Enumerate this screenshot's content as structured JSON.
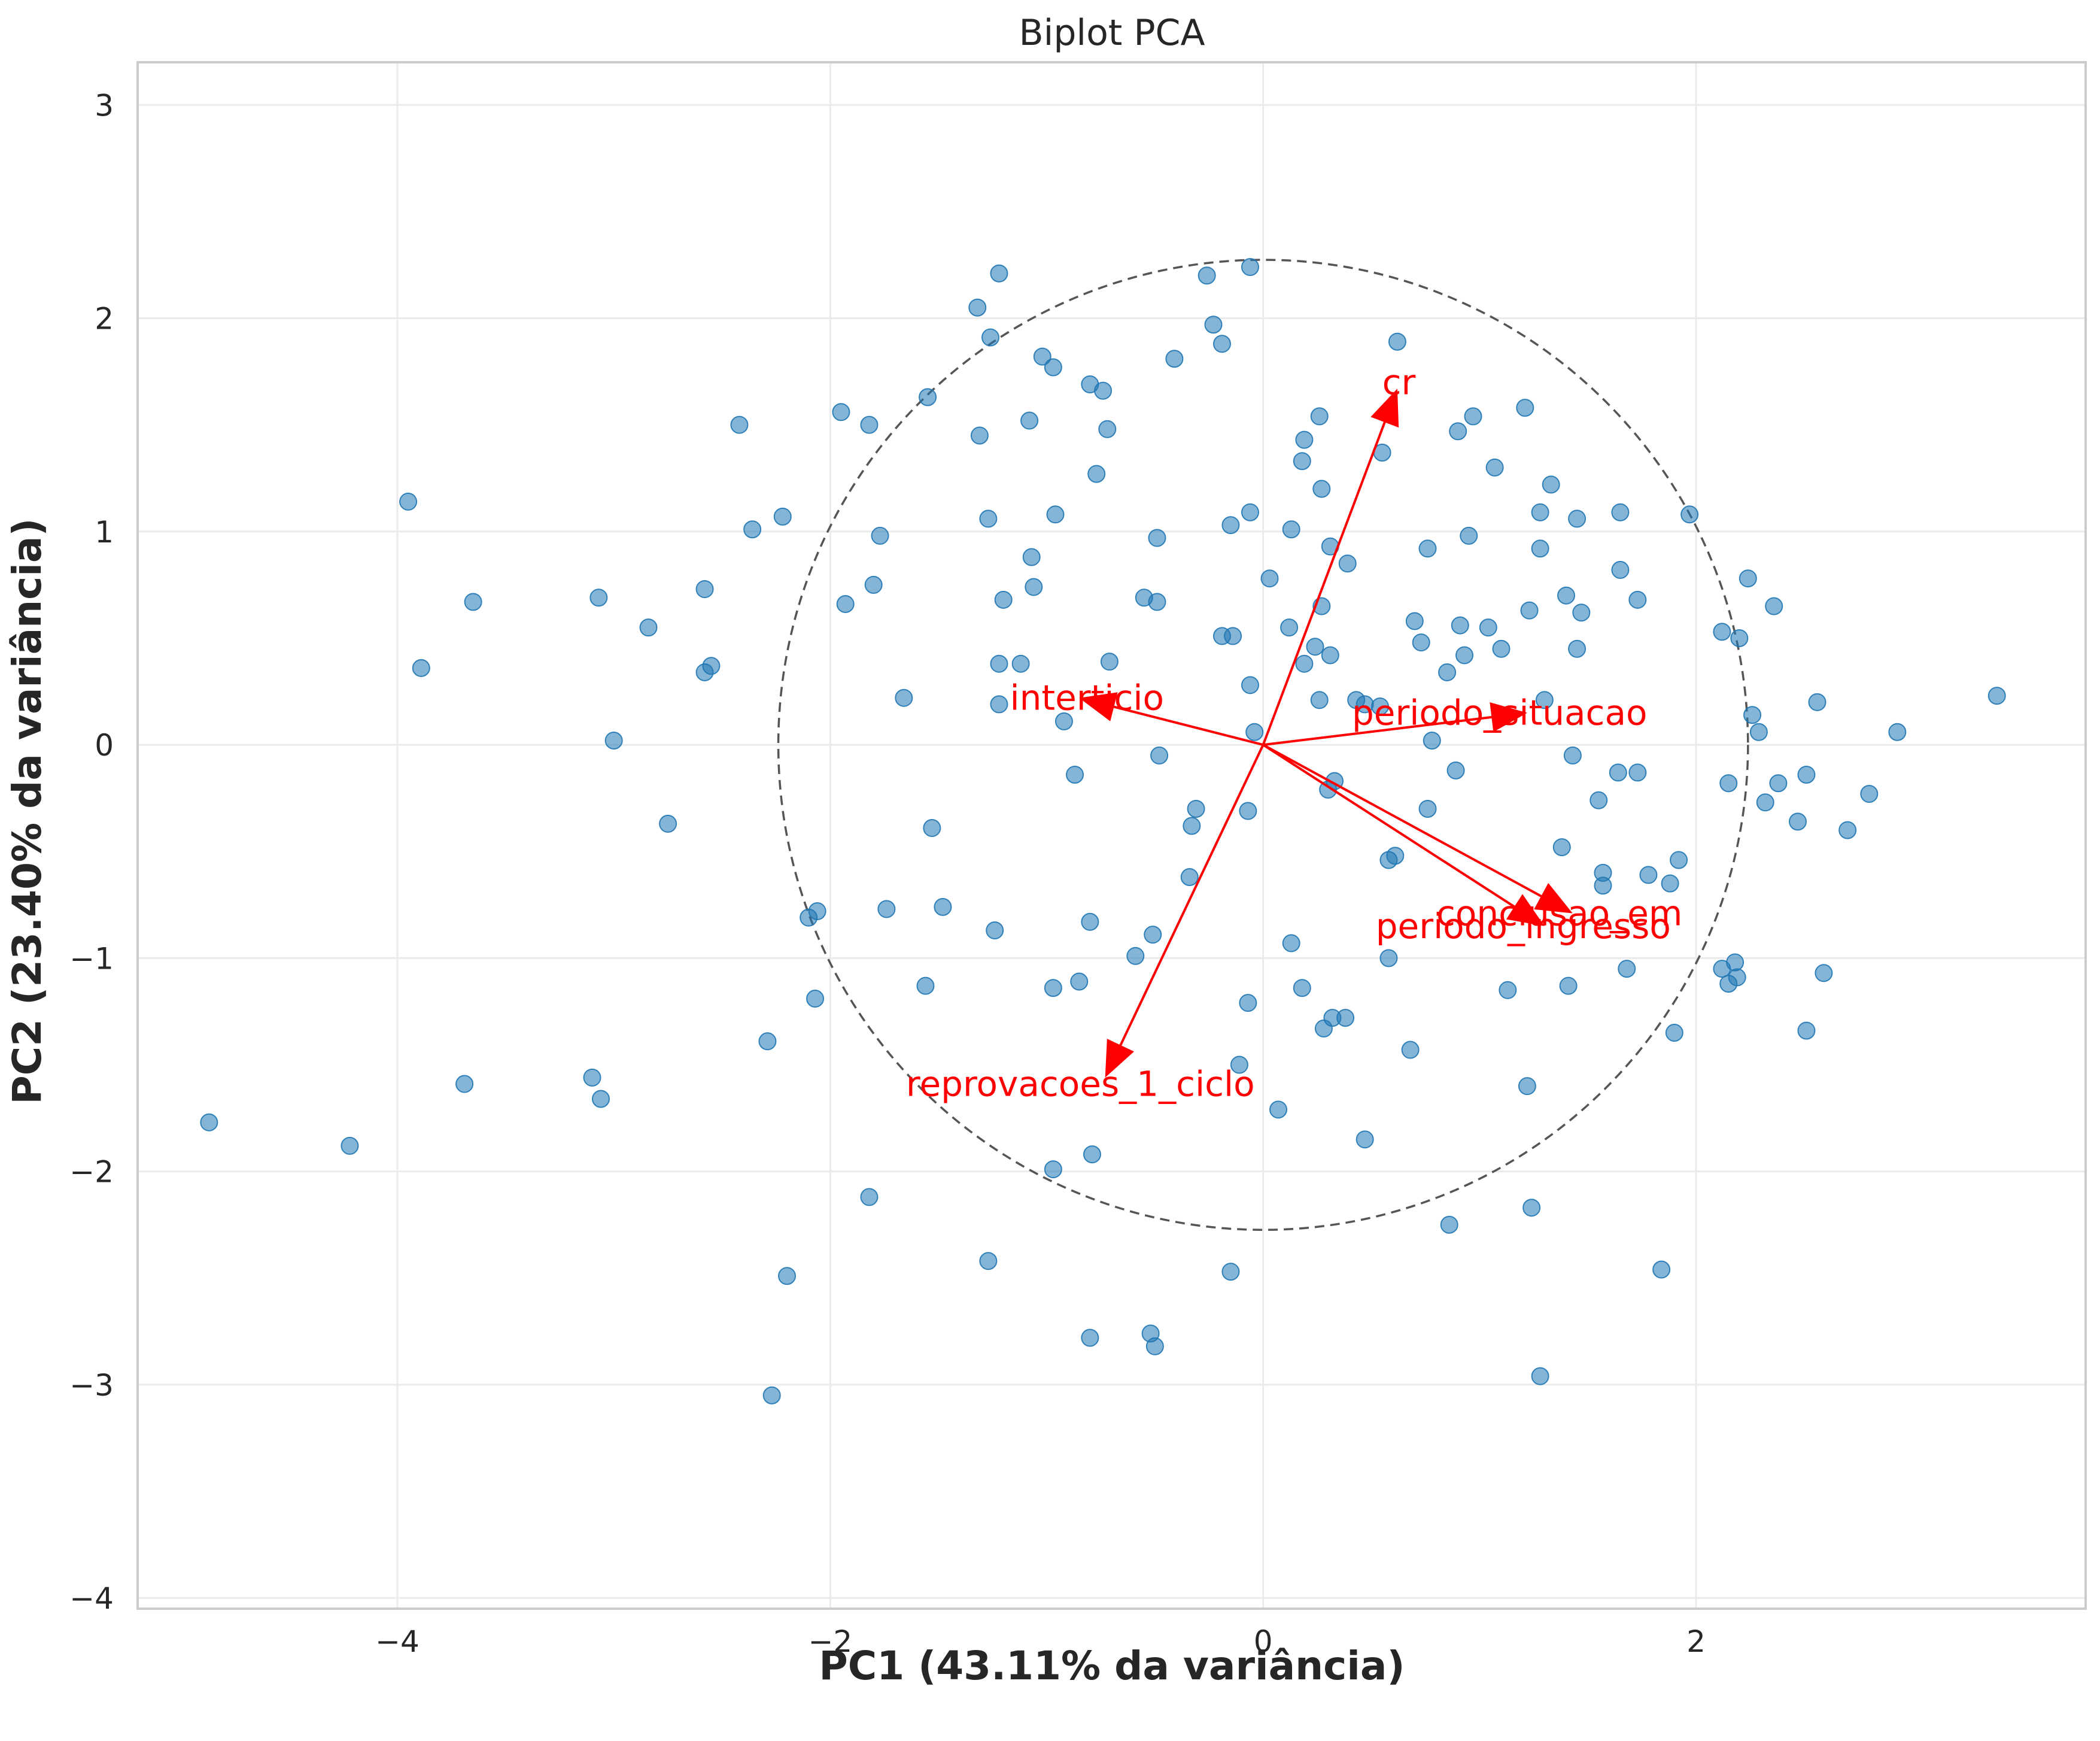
{
  "chart_data": {
    "type": "scatter",
    "title": "Biplot PCA",
    "xlabel": "PC1 (43.11% da variância)",
    "ylabel": "PC2 (23.40% da variância)",
    "xlim": [
      -5.2,
      3.8
    ],
    "ylim": [
      -4.05,
      3.2
    ],
    "xticks": [
      -4,
      -2,
      0,
      2
    ],
    "xtick_labels": [
      "−4",
      "−2",
      "0",
      "2"
    ],
    "yticks": [
      -4,
      -3,
      -2,
      -1,
      0,
      1,
      2,
      3
    ],
    "ytick_labels": [
      "−4",
      "−3",
      "−2",
      "−1",
      "0",
      "1",
      "2",
      "3"
    ],
    "grid": true,
    "point_color": "#1f77b4",
    "loading_color": "#ff0000",
    "circle_radius": 2.24,
    "points": [
      [
        -4.87,
        -1.77
      ],
      [
        -4.22,
        -1.88
      ],
      [
        -3.95,
        1.14
      ],
      [
        -3.89,
        0.36
      ],
      [
        -3.65,
        0.67
      ],
      [
        -3.69,
        -1.59
      ],
      [
        -3.07,
        0.69
      ],
      [
        -3.0,
        0.02
      ],
      [
        -2.84,
        0.55
      ],
      [
        -2.75,
        -0.37
      ],
      [
        -3.1,
        -1.56
      ],
      [
        -3.06,
        -1.66
      ],
      [
        -2.58,
        0.73
      ],
      [
        -2.55,
        0.37
      ],
      [
        -2.58,
        0.34
      ],
      [
        -2.42,
        1.5
      ],
      [
        -2.36,
        1.01
      ],
      [
        -2.22,
        1.07
      ],
      [
        -2.29,
        -1.39
      ],
      [
        -2.2,
        -2.49
      ],
      [
        -2.27,
        -3.05
      ],
      [
        -2.1,
        -0.81
      ],
      [
        -2.06,
        -0.78
      ],
      [
        -2.07,
        -1.19
      ],
      [
        -1.95,
        1.56
      ],
      [
        -1.82,
        1.5
      ],
      [
        -1.77,
        0.98
      ],
      [
        -1.8,
        0.75
      ],
      [
        -1.93,
        0.66
      ],
      [
        -1.66,
        0.22
      ],
      [
        -1.74,
        -0.77
      ],
      [
        -1.82,
        -2.12
      ],
      [
        -1.55,
        1.63
      ],
      [
        -1.53,
        -0.39
      ],
      [
        -1.48,
        -0.76
      ],
      [
        -1.56,
        -1.13
      ],
      [
        -1.32,
        2.05
      ],
      [
        -1.22,
        2.21
      ],
      [
        -1.26,
        1.91
      ],
      [
        -1.31,
        1.45
      ],
      [
        -1.27,
        1.06
      ],
      [
        -1.2,
        0.68
      ],
      [
        -1.22,
        0.38
      ],
      [
        -1.22,
        0.19
      ],
      [
        -1.24,
        -0.87
      ],
      [
        -1.27,
        -2.42
      ],
      [
        -1.02,
        1.82
      ],
      [
        -0.97,
        1.77
      ],
      [
        -1.08,
        1.52
      ],
      [
        -0.96,
        1.08
      ],
      [
        -1.07,
        0.88
      ],
      [
        -1.06,
        0.74
      ],
      [
        -1.12,
        0.38
      ],
      [
        -0.92,
        0.11
      ],
      [
        -0.87,
        -0.14
      ],
      [
        -0.97,
        -1.14
      ],
      [
        -0.85,
        -1.11
      ],
      [
        -0.97,
        -1.99
      ],
      [
        -0.79,
        -1.92
      ],
      [
        -0.8,
        -2.78
      ],
      [
        -0.8,
        1.69
      ],
      [
        -0.74,
        1.66
      ],
      [
        -0.72,
        1.48
      ],
      [
        -0.77,
        1.27
      ],
      [
        -0.71,
        0.39
      ],
      [
        -0.8,
        -0.83
      ],
      [
        -0.59,
        -0.99
      ],
      [
        -0.49,
        0.97
      ],
      [
        -0.55,
        0.69
      ],
      [
        -0.49,
        0.67
      ],
      [
        -0.48,
        -0.05
      ],
      [
        -0.51,
        -0.89
      ],
      [
        -0.52,
        -2.76
      ],
      [
        -0.5,
        -2.82
      ],
      [
        -0.41,
        1.81
      ],
      [
        -0.26,
        2.2
      ],
      [
        -0.23,
        1.97
      ],
      [
        -0.19,
        1.88
      ],
      [
        -0.15,
        1.03
      ],
      [
        -0.06,
        2.24
      ],
      [
        -0.06,
        1.09
      ],
      [
        -0.19,
        0.51
      ],
      [
        -0.14,
        0.51
      ],
      [
        -0.06,
        0.28
      ],
      [
        -0.04,
        0.06
      ],
      [
        -0.31,
        -0.3
      ],
      [
        -0.33,
        -0.38
      ],
      [
        -0.07,
        -0.31
      ],
      [
        -0.34,
        -0.62
      ],
      [
        -0.07,
        -1.21
      ],
      [
        -0.11,
        -1.5
      ],
      [
        -0.15,
        -2.47
      ],
      [
        0.03,
        0.78
      ],
      [
        0.07,
        -1.71
      ],
      [
        0.19,
        1.43
      ],
      [
        0.18,
        1.33
      ],
      [
        0.26,
        1.54
      ],
      [
        0.27,
        1.2
      ],
      [
        0.13,
        1.01
      ],
      [
        0.31,
        0.93
      ],
      [
        0.39,
        0.85
      ],
      [
        0.12,
        0.55
      ],
      [
        0.27,
        0.65
      ],
      [
        0.24,
        0.46
      ],
      [
        0.19,
        0.38
      ],
      [
        0.31,
        0.42
      ],
      [
        0.26,
        0.21
      ],
      [
        0.43,
        0.21
      ],
      [
        0.47,
        0.19
      ],
      [
        0.54,
        0.18
      ],
      [
        0.3,
        -0.21
      ],
      [
        0.33,
        -0.17
      ],
      [
        0.13,
        -0.93
      ],
      [
        0.18,
        -1.14
      ],
      [
        0.32,
        -1.28
      ],
      [
        0.38,
        -1.28
      ],
      [
        0.28,
        -1.33
      ],
      [
        0.47,
        -1.85
      ],
      [
        0.62,
        1.89
      ],
      [
        0.55,
        1.37
      ],
      [
        0.9,
        1.47
      ],
      [
        0.97,
        1.54
      ],
      [
        1.07,
        1.3
      ],
      [
        0.76,
        0.92
      ],
      [
        0.95,
        0.98
      ],
      [
        0.7,
        0.58
      ],
      [
        0.73,
        0.48
      ],
      [
        0.85,
        0.34
      ],
      [
        0.93,
        0.42
      ],
      [
        0.91,
        0.56
      ],
      [
        1.04,
        0.55
      ],
      [
        1.1,
        0.45
      ],
      [
        1.21,
        1.58
      ],
      [
        1.28,
        1.09
      ],
      [
        1.33,
        1.22
      ],
      [
        1.45,
        1.06
      ],
      [
        1.28,
        0.92
      ],
      [
        1.4,
        0.7
      ],
      [
        1.23,
        0.63
      ],
      [
        1.47,
        0.62
      ],
      [
        1.45,
        0.45
      ],
      [
        1.3,
        0.21
      ],
      [
        1.43,
        -0.05
      ],
      [
        0.78,
        0.02
      ],
      [
        0.89,
        -0.12
      ],
      [
        0.76,
        -0.3
      ],
      [
        0.58,
        -0.54
      ],
      [
        0.61,
        -0.52
      ],
      [
        0.58,
        -1.0
      ],
      [
        0.68,
        -1.43
      ],
      [
        1.13,
        -1.15
      ],
      [
        1.22,
        -1.6
      ],
      [
        1.24,
        -2.17
      ],
      [
        0.86,
        -2.25
      ],
      [
        1.28,
        -2.96
      ],
      [
        1.65,
        1.09
      ],
      [
        1.65,
        0.82
      ],
      [
        1.73,
        0.68
      ],
      [
        1.97,
        1.08
      ],
      [
        1.64,
        -0.13
      ],
      [
        1.73,
        -0.13
      ],
      [
        1.55,
        -0.26
      ],
      [
        1.38,
        -0.48
      ],
      [
        1.57,
        -0.6
      ],
      [
        1.57,
        -0.66
      ],
      [
        1.78,
        -0.61
      ],
      [
        1.88,
        -0.65
      ],
      [
        1.92,
        -0.54
      ],
      [
        1.41,
        -1.13
      ],
      [
        1.68,
        -1.05
      ],
      [
        1.9,
        -1.35
      ],
      [
        1.84,
        -2.46
      ],
      [
        2.12,
        0.53
      ],
      [
        2.2,
        0.5
      ],
      [
        2.24,
        0.78
      ],
      [
        2.36,
        0.65
      ],
      [
        2.26,
        0.14
      ],
      [
        2.29,
        0.06
      ],
      [
        2.15,
        -0.18
      ],
      [
        2.38,
        -0.18
      ],
      [
        2.32,
        -0.27
      ],
      [
        2.47,
        -0.36
      ],
      [
        2.12,
        -1.05
      ],
      [
        2.15,
        -1.12
      ],
      [
        2.18,
        -1.02
      ],
      [
        2.19,
        -1.09
      ],
      [
        2.51,
        -0.14
      ],
      [
        2.56,
        0.2
      ],
      [
        2.59,
        -1.07
      ],
      [
        2.51,
        -1.34
      ],
      [
        2.7,
        -0.4
      ],
      [
        2.8,
        -0.23
      ],
      [
        2.93,
        0.06
      ],
      [
        3.39,
        0.23
      ]
    ],
    "loadings": [
      {
        "name": "cr",
        "x": 0.62,
        "y": 1.67,
        "label_x": 0.55,
        "label_y": 1.7
      },
      {
        "name": "interticio",
        "x": -0.85,
        "y": 0.22,
        "label_x": -1.17,
        "label_y": 0.22
      },
      {
        "name": "periodo_situacao",
        "x": 1.22,
        "y": 0.15,
        "label_x": 0.41,
        "label_y": 0.15
      },
      {
        "name": "conclusao_em",
        "x": 1.43,
        "y": -0.79,
        "label_x": 0.8,
        "label_y": -0.79
      },
      {
        "name": "periodo_ingresso",
        "x": 1.3,
        "y": -0.85,
        "label_x": 0.52,
        "label_y": -0.85
      },
      {
        "name": "reprovacoes_1_ciclo",
        "x": -0.73,
        "y": -1.56,
        "label_x": -1.65,
        "label_y": -1.59
      }
    ]
  }
}
